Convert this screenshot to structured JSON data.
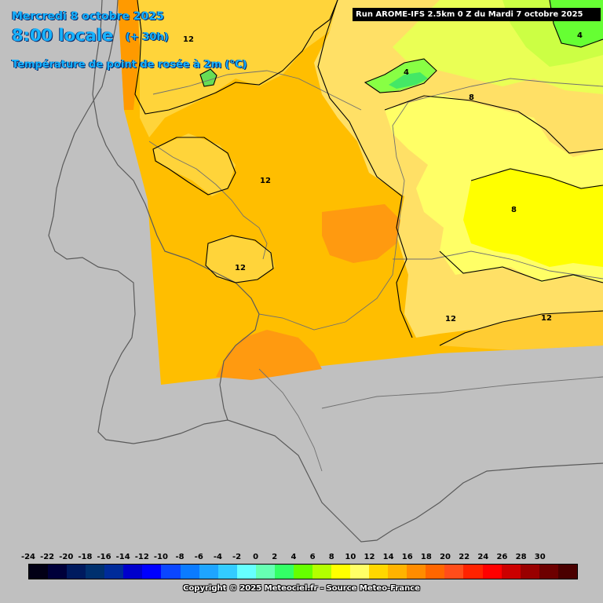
{
  "header": {
    "date": "Mercredi 8 octobre 2025",
    "time": "8:00 locale",
    "forecast_offset": "(+ 30h)",
    "parameter": "Température de point de rosée à 2m (°C)"
  },
  "run_banner": "Run AROME-IFS 2.5km 0 Z du Mardi 7 octobre 2025",
  "contour_labels": [
    "12",
    "4",
    "8",
    "4",
    "12",
    "12",
    "8",
    "12",
    "12"
  ],
  "legend": {
    "ticks": [
      "-24",
      "-22",
      "-20",
      "-18",
      "-16",
      "-14",
      "-12",
      "-10",
      "-8",
      "-6",
      "-4",
      "-2",
      "0",
      "2",
      "4",
      "6",
      "8",
      "10",
      "12",
      "14",
      "16",
      "18",
      "20",
      "22",
      "24",
      "26",
      "28",
      "30"
    ],
    "colors": [
      "#020015",
      "#00003a",
      "#001a5e",
      "#00306e",
      "#002b9a",
      "#0000cc",
      "#0000ff",
      "#0a46ff",
      "#0a7bff",
      "#1ea5ff",
      "#33ccff",
      "#66ffff",
      "#66ffb3",
      "#33ff66",
      "#66ff00",
      "#b3ff00",
      "#ffff00",
      "#ffff66",
      "#ffd700",
      "#ffb300",
      "#ff8c00",
      "#ff6600",
      "#ff4d1a",
      "#ff2200",
      "#ff0000",
      "#cc0000",
      "#990000",
      "#6d0000",
      "#4a0000"
    ]
  },
  "copyright": "Copyright © 2025 Meteociel.fr - Source Meteo-France"
}
